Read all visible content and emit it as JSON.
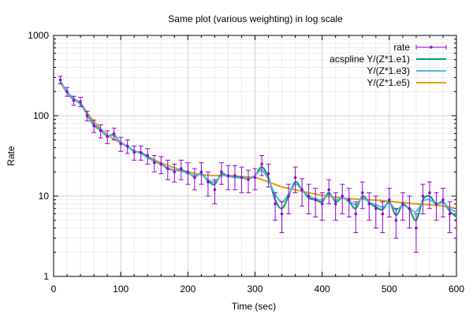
{
  "chart_data": {
    "type": "line",
    "title": "Same plot (various weighting) in log scale",
    "xlabel": "Time (sec)",
    "ylabel": "Rate",
    "xlim": [
      0,
      600
    ],
    "ylim": [
      1,
      1000
    ],
    "yscale": "log",
    "grid": true,
    "legend_position": "top-right",
    "x_ticks": [
      "0",
      "100",
      "200",
      "300",
      "400",
      "500",
      "600"
    ],
    "y_ticks": [
      "1",
      "10",
      "100",
      "1000"
    ],
    "series": [
      {
        "name": "rate",
        "style": "points-with-errorbars",
        "color": "#9400d3",
        "x": [
          10,
          20,
          30,
          40,
          50,
          60,
          70,
          80,
          90,
          100,
          110,
          120,
          130,
          140,
          150,
          160,
          170,
          180,
          190,
          200,
          210,
          220,
          230,
          240,
          250,
          260,
          270,
          280,
          290,
          300,
          310,
          320,
          330,
          340,
          350,
          360,
          370,
          380,
          390,
          400,
          410,
          420,
          430,
          440,
          450,
          460,
          470,
          480,
          490,
          500,
          510,
          520,
          530,
          540,
          550,
          560,
          570,
          580,
          590,
          600
        ],
        "y": [
          280,
          200,
          155,
          150,
          100,
          75,
          65,
          55,
          60,
          45,
          42,
          35,
          35,
          32,
          26,
          25,
          22,
          20,
          22,
          20,
          17,
          20,
          15,
          12,
          20,
          18,
          18,
          17,
          16,
          17,
          25,
          19,
          8,
          6,
          10,
          17,
          12,
          10,
          9,
          8,
          12,
          8,
          10,
          9,
          6,
          11,
          8,
          7,
          6,
          9,
          5,
          8,
          7,
          4,
          10,
          11,
          8,
          9,
          6,
          5
        ],
        "err_low": [
          250,
          175,
          135,
          130,
          86,
          62,
          53,
          45,
          50,
          36,
          34,
          28,
          28,
          25,
          20,
          19,
          16,
          15,
          16,
          14,
          12,
          14,
          10,
          8,
          14,
          12,
          12,
          11,
          11,
          12,
          18,
          13,
          5,
          3.5,
          6,
          11,
          7.5,
          6,
          5.5,
          5,
          8,
          5,
          6,
          5.5,
          3.5,
          7,
          5,
          4,
          3.5,
          5.5,
          3,
          5,
          4,
          2,
          6,
          7,
          5,
          5.5,
          3.5,
          3
        ],
        "err_high": [
          310,
          225,
          175,
          170,
          114,
          88,
          77,
          65,
          70,
          54,
          50,
          42,
          42,
          39,
          32,
          31,
          28,
          25,
          28,
          26,
          22,
          26,
          20,
          16,
          26,
          24,
          24,
          23,
          21,
          22,
          32,
          25,
          11,
          8.5,
          14,
          23,
          16.5,
          14,
          12.5,
          11,
          16,
          11,
          14,
          12.5,
          8.5,
          15,
          11,
          10,
          8.5,
          12.5,
          7,
          11,
          10,
          6,
          14,
          15,
          11,
          12.5,
          8.5,
          7
        ]
      },
      {
        "name": "acspline Y/(Z*1.e1)",
        "style": "line",
        "color": "#009e73",
        "x": [
          10,
          20,
          30,
          40,
          50,
          60,
          70,
          80,
          90,
          100,
          110,
          120,
          130,
          140,
          150,
          160,
          170,
          180,
          190,
          200,
          210,
          220,
          230,
          240,
          250,
          260,
          270,
          280,
          290,
          300,
          310,
          320,
          330,
          340,
          350,
          360,
          370,
          380,
          390,
          400,
          410,
          420,
          430,
          440,
          450,
          460,
          470,
          480,
          490,
          500,
          510,
          520,
          530,
          540,
          550,
          560,
          570,
          580,
          590,
          600
        ],
        "y": [
          270,
          198,
          158,
          145,
          102,
          76,
          66,
          56,
          58,
          46,
          42,
          36,
          35,
          31,
          27,
          25,
          22,
          21,
          21,
          19.5,
          17.5,
          19,
          15.5,
          14,
          19,
          17.5,
          17.5,
          17,
          16.5,
          18,
          23,
          17,
          9,
          7,
          10,
          15,
          12,
          9.5,
          9,
          8.5,
          11,
          8.5,
          9.5,
          8.5,
          7,
          10,
          8.3,
          7.3,
          6.8,
          8.5,
          5.8,
          7.8,
          6.8,
          5,
          9,
          10,
          8,
          8.5,
          6.5,
          5.5
        ]
      },
      {
        "name": "Y/(Z*1.e3)",
        "style": "line",
        "color": "#56b4e9",
        "x": [
          10,
          20,
          30,
          40,
          50,
          60,
          70,
          80,
          90,
          100,
          110,
          120,
          130,
          140,
          150,
          160,
          170,
          180,
          190,
          200,
          210,
          220,
          230,
          240,
          250,
          260,
          270,
          280,
          290,
          300,
          310,
          320,
          330,
          340,
          350,
          360,
          370,
          380,
          390,
          400,
          410,
          420,
          430,
          440,
          450,
          460,
          470,
          480,
          490,
          500,
          510,
          520,
          530,
          540,
          550,
          560,
          570,
          580,
          590,
          600
        ],
        "y": [
          265,
          200,
          162,
          138,
          104,
          79,
          67,
          57,
          56,
          47,
          41,
          37,
          34,
          30,
          27,
          25,
          22.5,
          21,
          20.5,
          19,
          18,
          18.5,
          16,
          15,
          18,
          17.5,
          17,
          16.8,
          16.5,
          18,
          21,
          16,
          10.5,
          8.5,
          10.5,
          14,
          12,
          10,
          9.3,
          9,
          10.5,
          9,
          9.5,
          8.8,
          7.8,
          9.5,
          8.4,
          7.8,
          7.3,
          8.2,
          6.8,
          7.6,
          7,
          6.4,
          8.6,
          9,
          8,
          8.2,
          7,
          6.3
        ]
      },
      {
        "name": "Y/(Z*1.e5)",
        "style": "line",
        "color": "#e69f00",
        "x": [
          10,
          20,
          40,
          60,
          80,
          100,
          120,
          140,
          160,
          180,
          200,
          220,
          240,
          260,
          280,
          300,
          320,
          340,
          360,
          380,
          400,
          420,
          440,
          460,
          480,
          500,
          520,
          540,
          560,
          580,
          600
        ],
        "y": [
          260,
          195,
          140,
          85,
          58,
          46,
          37,
          31,
          26,
          22.5,
          20,
          18.5,
          18,
          18,
          17.5,
          17,
          15,
          13,
          12,
          11,
          10.2,
          9.7,
          9.3,
          9.1,
          8.9,
          8.6,
          8.3,
          8,
          7.8,
          7.5,
          7
        ]
      }
    ]
  }
}
